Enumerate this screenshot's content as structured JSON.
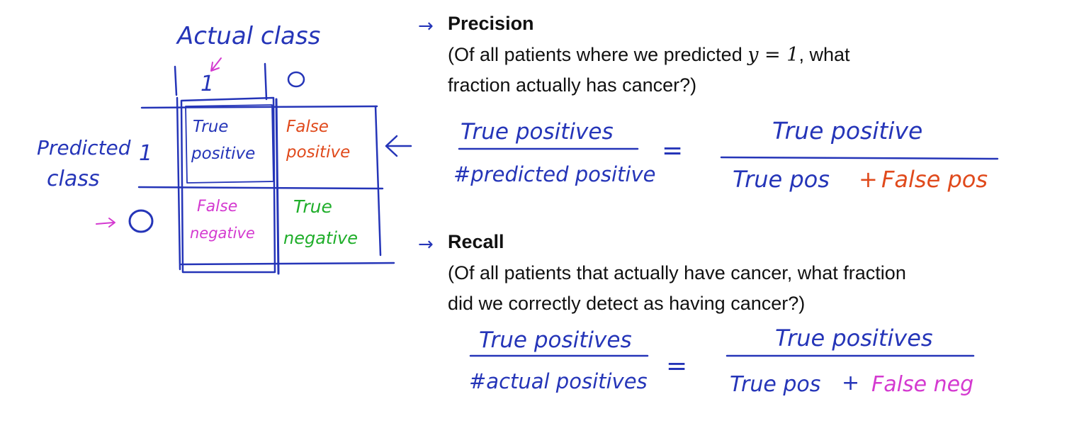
{
  "colors": {
    "ink_blue": "#2535b8",
    "ink_red": "#e04a1c",
    "ink_magenta": "#d43ad0",
    "ink_green": "#1fae2a",
    "text": "#111111"
  },
  "matrix": {
    "actual_label": "Actual class",
    "actual_1": "1",
    "actual_0": "0",
    "predicted_label_line1": "Predicted",
    "predicted_label_line2": "class",
    "predicted_1": "1",
    "predicted_0": "0",
    "cells": {
      "tp_line1": "True",
      "tp_line2": "positive",
      "fp_line1": "False",
      "fp_line2": "positive",
      "fn_line1": "False",
      "fn_line2": "negative",
      "tn_line1": "True",
      "tn_line2": "negative"
    }
  },
  "precision": {
    "heading": "Precision",
    "desc_part1": "(Of all patients where we predicted ",
    "desc_math": "y = 1",
    "desc_part2": ", what",
    "desc_line2": "fraction actually has cancer?)",
    "frac1_num": "True positives",
    "frac1_den": "#predicted positive",
    "equals": "=",
    "frac2_num": "True positive",
    "frac2_den_a": "True pos",
    "frac2_den_plus": "+",
    "frac2_den_b": "False pos"
  },
  "recall": {
    "heading": "Recall",
    "desc_line1": "(Of all patients that actually have cancer, what fraction",
    "desc_line2": "did we correctly detect as having cancer?)",
    "frac1_num": "True positives",
    "frac1_den": "#actual positives",
    "equals": "=",
    "frac2_num": "True positives",
    "frac2_den_a": "True pos",
    "frac2_den_plus": "+",
    "frac2_den_b": "False neg"
  }
}
